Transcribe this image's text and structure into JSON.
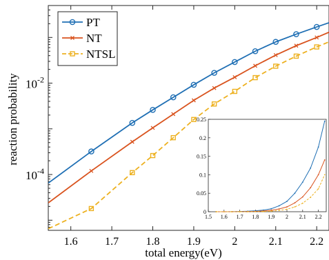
{
  "chart_data": [
    {
      "type": "line",
      "xlabel": "total energy(eV)",
      "ylabel": "reaction probability",
      "yscale": "log",
      "xlim": [
        1.545,
        2.23
      ],
      "ylim": [
        6e-06,
        0.5
      ],
      "xticks": [
        1.6,
        1.7,
        1.8,
        1.9,
        2.0,
        2.1,
        2.2
      ],
      "xtick_labels": [
        "1.6",
        "1.7",
        "1.8",
        "1.9",
        "2",
        "2.1",
        "2.2"
      ],
      "yticks": [
        0.0001,
        0.01
      ],
      "ytick_labels": [
        {
          "base": "10",
          "exp": "-4"
        },
        {
          "base": "10",
          "exp": "-2"
        }
      ],
      "legend_position": "top-left",
      "grid": false,
      "series": [
        {
          "name": "PT",
          "color": "#1f6fb4",
          "marker": "circle",
          "dash": false,
          "x": [
            1.545,
            1.65,
            1.75,
            1.8,
            1.85,
            1.9,
            1.95,
            2.0,
            2.05,
            2.1,
            2.15,
            2.2,
            2.23
          ],
          "y": [
            6.5e-05,
            0.00032,
            0.00135,
            0.0026,
            0.0049,
            0.0092,
            0.0168,
            0.029,
            0.05,
            0.08,
            0.118,
            0.17,
            0.21
          ]
        },
        {
          "name": "NT",
          "color": "#d9531e",
          "marker": "x",
          "dash": false,
          "x": [
            1.545,
            1.65,
            1.75,
            1.8,
            1.85,
            1.9,
            1.95,
            2.0,
            2.05,
            2.1,
            2.15,
            2.2,
            2.23
          ],
          "y": [
            2.4e-05,
            0.00012,
            0.00052,
            0.00105,
            0.0021,
            0.0042,
            0.0078,
            0.0135,
            0.024,
            0.041,
            0.066,
            0.1,
            0.13
          ]
        },
        {
          "name": "NTSL",
          "color": "#edb120",
          "marker": "square",
          "dash": true,
          "x": [
            1.545,
            1.65,
            1.75,
            1.8,
            1.85,
            1.9,
            1.95,
            2.0,
            2.05,
            2.1,
            2.15,
            2.2,
            2.23
          ],
          "y": [
            6.5e-06,
            1.8e-05,
            0.00011,
            0.00026,
            0.00064,
            0.0016,
            0.0035,
            0.0066,
            0.0132,
            0.0235,
            0.039,
            0.062,
            0.08
          ]
        }
      ]
    },
    {
      "type": "line",
      "xlim": [
        1.5,
        2.25
      ],
      "ylim": [
        0,
        0.25
      ],
      "xticks": [
        1.5,
        1.6,
        1.7,
        1.8,
        1.9,
        2.0,
        2.1,
        2.2
      ],
      "xtick_labels": [
        "1.5",
        "1.6",
        "1.7",
        "1.8",
        "1.9",
        "2",
        "2.1",
        "2.2"
      ],
      "yticks": [
        0,
        0.05,
        0.1,
        0.15,
        0.2,
        0.25
      ],
      "ytick_labels": [
        "0",
        "0.05",
        "0.1",
        "0.15",
        "0.2",
        "0.25"
      ],
      "series": [
        {
          "color": "#1f6fb4",
          "x": [
            1.55,
            1.6,
            1.65,
            1.7,
            1.75,
            1.8,
            1.85,
            1.9,
            1.95,
            2.0,
            2.05,
            2.1,
            2.15,
            2.2,
            2.24
          ],
          "y": [
            0.0,
            0.0001,
            0.0003,
            0.0007,
            0.0013,
            0.0025,
            0.0045,
            0.008,
            0.016,
            0.028,
            0.05,
            0.08,
            0.118,
            0.175,
            0.245
          ]
        },
        {
          "color": "#d9531e",
          "x": [
            1.55,
            1.6,
            1.65,
            1.7,
            1.75,
            1.8,
            1.85,
            1.9,
            1.95,
            2.0,
            2.05,
            2.1,
            2.15,
            2.2,
            2.24
          ],
          "y": [
            0.0,
            0.0,
            0.0001,
            0.0003,
            0.0005,
            0.001,
            0.002,
            0.004,
            0.0075,
            0.013,
            0.024,
            0.04,
            0.065,
            0.1,
            0.14
          ]
        },
        {
          "color": "#edb120",
          "dash": true,
          "x": [
            1.55,
            1.6,
            1.65,
            1.7,
            1.75,
            1.8,
            1.85,
            1.9,
            1.95,
            2.0,
            2.05,
            2.1,
            2.15,
            2.2,
            2.24
          ],
          "y": [
            0.0,
            0.0,
            0.0,
            0.0001,
            0.0001,
            0.0003,
            0.0006,
            0.0015,
            0.0035,
            0.0066,
            0.013,
            0.023,
            0.039,
            0.062,
            0.1
          ]
        }
      ]
    }
  ]
}
